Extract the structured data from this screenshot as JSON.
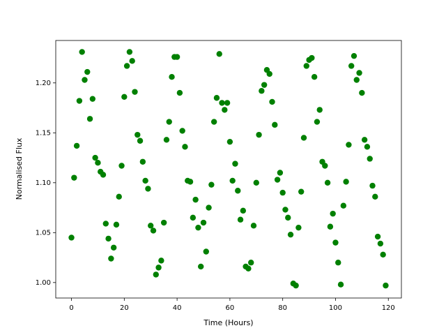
{
  "chart_data": {
    "type": "scatter",
    "x_label": "Time (Hours)",
    "y_label": "Normalised Flux",
    "color": "#008000",
    "x": [
      0,
      1,
      2,
      3,
      4,
      5,
      6,
      7,
      8,
      9,
      10,
      11,
      12,
      13,
      14,
      15,
      16,
      17,
      18,
      19,
      20,
      21,
      22,
      23,
      24,
      25,
      26,
      27,
      28,
      29,
      30,
      31,
      32,
      33,
      34,
      35,
      36,
      37,
      38,
      39,
      40,
      41,
      42,
      43,
      44,
      45,
      46,
      47,
      48,
      49,
      50,
      51,
      52,
      53,
      54,
      55,
      56,
      57,
      58,
      59,
      60,
      61,
      62,
      63,
      64,
      65,
      66,
      67,
      68,
      69,
      70,
      71,
      72,
      73,
      74,
      75,
      76,
      77,
      78,
      79,
      80,
      81,
      82,
      83,
      84,
      85,
      86,
      87,
      88,
      89,
      90,
      91,
      92,
      93,
      94,
      95,
      96,
      97,
      98,
      99,
      100,
      101,
      102,
      103,
      104,
      105,
      106,
      107,
      108,
      109,
      110,
      111,
      112,
      113,
      114,
      115,
      116,
      117,
      118,
      119
    ],
    "values": [
      1.045,
      1.105,
      1.137,
      1.182,
      1.231,
      1.203,
      1.211,
      1.164,
      1.184,
      1.125,
      1.12,
      1.111,
      1.108,
      1.059,
      1.044,
      1.024,
      1.035,
      1.058,
      1.086,
      1.117,
      1.186,
      1.217,
      1.231,
      1.222,
      1.191,
      1.148,
      1.142,
      1.121,
      1.102,
      1.094,
      1.057,
      1.052,
      1.008,
      1.015,
      1.022,
      1.06,
      1.143,
      1.161,
      1.206,
      1.226,
      1.226,
      1.19,
      1.152,
      1.136,
      1.102,
      1.101,
      1.065,
      1.083,
      1.055,
      1.016,
      1.06,
      1.031,
      1.075,
      1.098,
      1.161,
      1.185,
      1.229,
      1.18,
      1.173,
      1.18,
      1.141,
      1.102,
      1.119,
      1.092,
      1.063,
      1.072,
      1.016,
      1.014,
      1.02,
      1.057,
      1.1,
      1.148,
      1.192,
      1.198,
      1.213,
      1.209,
      1.181,
      1.158,
      1.103,
      1.11,
      1.09,
      1.073,
      1.065,
      1.048,
      0.999,
      0.997,
      1.055,
      1.091,
      1.145,
      1.217,
      1.223,
      1.225,
      1.206,
      1.161,
      1.173,
      1.121,
      1.117,
      1.1,
      1.056,
      1.069,
      1.04,
      1.02,
      0.998,
      1.077,
      1.101,
      1.138,
      1.217,
      1.227,
      1.203,
      1.21,
      1.19,
      1.143,
      1.136,
      1.124,
      1.097,
      1.086,
      1.046,
      1.039,
      1.028,
      0.997
    ],
    "xlim": [
      -5.95,
      124.95
    ],
    "ylim": [
      0.9845,
      1.2425
    ],
    "xticks": [
      0,
      20,
      40,
      60,
      80,
      100,
      120
    ],
    "yticks": [
      {
        "value": 1.0,
        "label": "1.00"
      },
      {
        "value": 1.05,
        "label": "1.05"
      },
      {
        "value": 1.1,
        "label": "1.10"
      },
      {
        "value": 1.15,
        "label": "1.15"
      },
      {
        "value": 1.2,
        "label": "1.20"
      }
    ],
    "grid": false
  }
}
